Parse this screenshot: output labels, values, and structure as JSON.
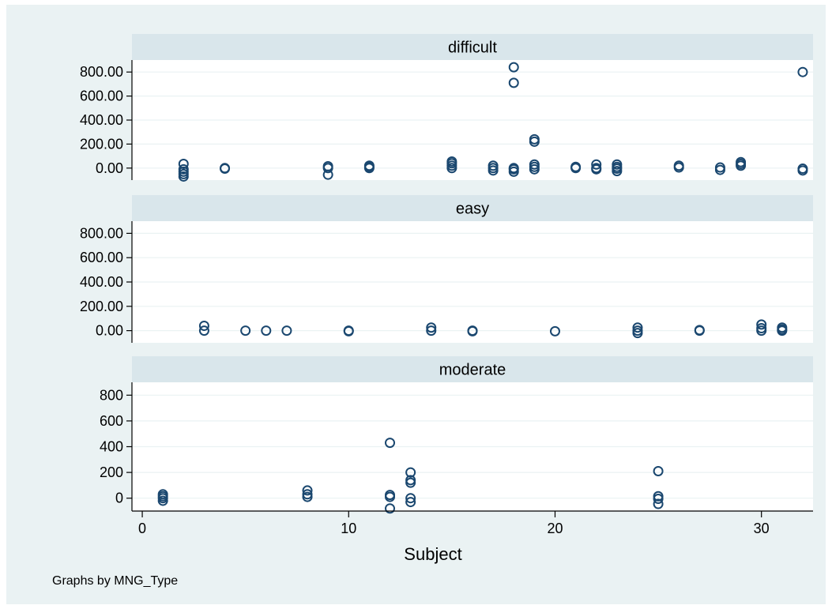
{
  "chart_data": {
    "type": "scatter",
    "xlabel": "Subject",
    "x_ticks": [
      0,
      10,
      20,
      30
    ],
    "xlim": [
      -0.5,
      32.5
    ],
    "note": "Graphs by MNG_Type",
    "panels": [
      {
        "title": "difficult",
        "ylim": [
          -100,
          900
        ],
        "y_ticks": [
          0,
          200,
          400,
          600,
          800
        ],
        "y_tick_labels": [
          "0.00",
          "200.00",
          "400.00",
          "600.00",
          "800.00"
        ],
        "points": [
          [
            2,
            35
          ],
          [
            2,
            -10
          ],
          [
            2,
            -30
          ],
          [
            2,
            -50
          ],
          [
            2,
            -70
          ],
          [
            4,
            0
          ],
          [
            4,
            -5
          ],
          [
            9,
            15
          ],
          [
            9,
            0
          ],
          [
            9,
            -55
          ],
          [
            11,
            20
          ],
          [
            11,
            10
          ],
          [
            11,
            0
          ],
          [
            15,
            55
          ],
          [
            15,
            40
          ],
          [
            15,
            20
          ],
          [
            15,
            0
          ],
          [
            17,
            20
          ],
          [
            17,
            0
          ],
          [
            17,
            -20
          ],
          [
            18,
            840
          ],
          [
            18,
            710
          ],
          [
            18,
            0
          ],
          [
            18,
            -10
          ],
          [
            18,
            -30
          ],
          [
            19,
            240
          ],
          [
            19,
            220
          ],
          [
            19,
            30
          ],
          [
            19,
            10
          ],
          [
            19,
            -10
          ],
          [
            21,
            10
          ],
          [
            21,
            0
          ],
          [
            22,
            30
          ],
          [
            22,
            0
          ],
          [
            22,
            -10
          ],
          [
            23,
            30
          ],
          [
            23,
            10
          ],
          [
            23,
            -5
          ],
          [
            23,
            -25
          ],
          [
            26,
            20
          ],
          [
            26,
            5
          ],
          [
            28,
            5
          ],
          [
            28,
            -15
          ],
          [
            29,
            50
          ],
          [
            29,
            35
          ],
          [
            29,
            20
          ],
          [
            32,
            800
          ],
          [
            32,
            -5
          ],
          [
            32,
            -20
          ]
        ]
      },
      {
        "title": "easy",
        "ylim": [
          -100,
          900
        ],
        "y_ticks": [
          0,
          200,
          400,
          600,
          800
        ],
        "y_tick_labels": [
          "0.00",
          "200.00",
          "400.00",
          "600.00",
          "800.00"
        ],
        "points": [
          [
            3,
            40
          ],
          [
            3,
            0
          ],
          [
            5,
            0
          ],
          [
            6,
            0
          ],
          [
            7,
            0
          ],
          [
            10,
            0
          ],
          [
            10,
            -5
          ],
          [
            14,
            25
          ],
          [
            14,
            0
          ],
          [
            16,
            0
          ],
          [
            16,
            -5
          ],
          [
            20,
            -5
          ],
          [
            24,
            25
          ],
          [
            24,
            0
          ],
          [
            24,
            -20
          ],
          [
            27,
            5
          ],
          [
            27,
            0
          ],
          [
            30,
            50
          ],
          [
            30,
            20
          ],
          [
            30,
            0
          ],
          [
            31,
            25
          ],
          [
            31,
            10
          ],
          [
            31,
            0
          ]
        ]
      },
      {
        "title": "moderate",
        "ylim": [
          -100,
          900
        ],
        "y_ticks": [
          0,
          200,
          400,
          600,
          800
        ],
        "y_tick_labels": [
          "0",
          "200",
          "400",
          "600",
          "800"
        ],
        "points": [
          [
            1,
            30
          ],
          [
            1,
            15
          ],
          [
            1,
            0
          ],
          [
            1,
            -20
          ],
          [
            8,
            60
          ],
          [
            8,
            30
          ],
          [
            8,
            10
          ],
          [
            12,
            430
          ],
          [
            12,
            25
          ],
          [
            12,
            10
          ],
          [
            12,
            -80
          ],
          [
            13,
            200
          ],
          [
            13,
            140
          ],
          [
            13,
            120
          ],
          [
            13,
            0
          ],
          [
            13,
            -30
          ],
          [
            25,
            210
          ],
          [
            25,
            15
          ],
          [
            25,
            -5
          ],
          [
            25,
            -45
          ]
        ]
      }
    ]
  }
}
